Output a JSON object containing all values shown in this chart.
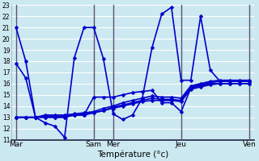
{
  "xlabel": "Température (°c)",
  "bg_color": "#cce8f0",
  "grid_color": "#ffffff",
  "line_color": "#0000cc",
  "line_width": 1.2,
  "marker": "D",
  "marker_size": 2.5,
  "ylim": [
    11,
    23
  ],
  "yticks": [
    11,
    12,
    13,
    14,
    15,
    16,
    17,
    18,
    19,
    20,
    21,
    22,
    23
  ],
  "day_labels": [
    "Mar",
    "Sam",
    "Mer",
    "Jeu",
    "Ven"
  ],
  "day_positions": [
    0,
    8,
    10,
    17,
    24
  ],
  "series": {
    "high": {
      "x": [
        0,
        1,
        2,
        3,
        4,
        5,
        6,
        7,
        8,
        9,
        10,
        11,
        12,
        13,
        14,
        15,
        16,
        17,
        18,
        19,
        20,
        21,
        22,
        23,
        24
      ],
      "y": [
        21.0,
        18.0,
        13.0,
        12.5,
        12.2,
        11.2,
        18.3,
        21.0,
        21.0,
        18.2,
        13.3,
        12.8,
        13.2,
        14.7,
        19.2,
        22.2,
        22.8,
        16.3,
        16.3,
        22.0,
        17.2,
        16.2,
        16.2,
        16.2,
        16.2
      ]
    },
    "mid1": {
      "x": [
        0,
        1,
        2,
        3,
        4,
        5,
        6,
        7,
        8,
        9,
        10,
        11,
        12,
        13,
        14,
        15,
        16,
        17,
        18,
        19,
        20,
        21,
        22,
        23,
        24
      ],
      "y": [
        17.8,
        16.5,
        13.0,
        13.0,
        13.0,
        13.0,
        13.2,
        13.2,
        14.8,
        14.8,
        14.8,
        15.0,
        15.2,
        15.3,
        15.4,
        14.3,
        14.3,
        13.5,
        15.6,
        15.8,
        16.0,
        16.0,
        16.0,
        16.0,
        16.0
      ]
    },
    "low1": {
      "x": [
        0,
        1,
        2,
        3,
        4,
        5,
        6,
        7,
        8,
        9,
        10,
        11,
        12,
        13,
        14,
        15,
        16,
        17,
        18,
        19,
        20,
        21,
        22,
        23,
        24
      ],
      "y": [
        13.0,
        13.0,
        13.0,
        13.0,
        13.0,
        13.0,
        13.2,
        13.2,
        13.4,
        13.6,
        13.8,
        14.0,
        14.2,
        14.4,
        14.5,
        14.5,
        14.5,
        14.4,
        15.5,
        15.7,
        15.9,
        16.0,
        16.0,
        16.0,
        16.0
      ]
    },
    "low2": {
      "x": [
        0,
        1,
        2,
        3,
        4,
        5,
        6,
        7,
        8,
        9,
        10,
        11,
        12,
        13,
        14,
        15,
        16,
        17,
        18,
        19,
        20,
        21,
        22,
        23,
        24
      ],
      "y": [
        13.0,
        13.0,
        13.0,
        13.1,
        13.1,
        13.1,
        13.2,
        13.3,
        13.4,
        13.6,
        13.9,
        14.1,
        14.3,
        14.5,
        14.7,
        14.6,
        14.6,
        14.5,
        15.7,
        15.9,
        16.1,
        16.2,
        16.2,
        16.2,
        16.2
      ]
    },
    "low3": {
      "x": [
        0,
        1,
        2,
        3,
        4,
        5,
        6,
        7,
        8,
        9,
        10,
        11,
        12,
        13,
        14,
        15,
        16,
        17,
        18,
        19,
        20,
        21,
        22,
        23,
        24
      ],
      "y": [
        13.0,
        13.0,
        13.0,
        13.2,
        13.2,
        13.2,
        13.3,
        13.4,
        13.5,
        13.8,
        14.0,
        14.3,
        14.5,
        14.7,
        14.9,
        14.8,
        14.8,
        14.7,
        15.8,
        16.0,
        16.2,
        16.3,
        16.3,
        16.3,
        16.3
      ]
    }
  },
  "xlim": [
    -0.5,
    24.5
  ]
}
